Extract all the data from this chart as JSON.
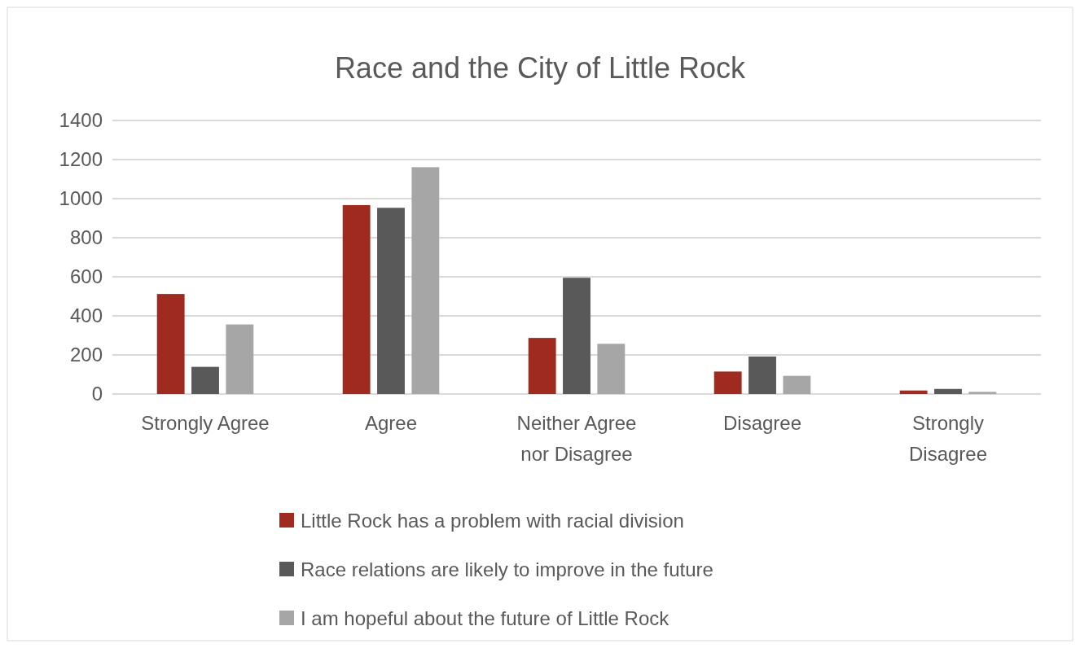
{
  "chart_data": {
    "type": "bar",
    "title": "Race and the City of Little Rock",
    "categories": [
      "Strongly Agree",
      "Agree",
      "Neither Agree nor Disagree",
      "Disagree",
      "Strongly Disagree"
    ],
    "series": [
      {
        "name": "Little Rock has a problem with racial division",
        "color": "#9e2a20",
        "values": [
          512,
          967,
          287,
          115,
          18
        ]
      },
      {
        "name": "Race relations are likely to improve in the future",
        "color": "#595959",
        "values": [
          139,
          953,
          595,
          192,
          26
        ]
      },
      {
        "name": "I am hopeful about the future of Little Rock",
        "color": "#a6a6a6",
        "values": [
          356,
          1161,
          257,
          93,
          11
        ]
      }
    ],
    "ylim": [
      0,
      1400
    ],
    "yticks": [
      0,
      200,
      400,
      600,
      800,
      1000,
      1200,
      1400
    ],
    "grid": "y",
    "legend": "bottom"
  }
}
